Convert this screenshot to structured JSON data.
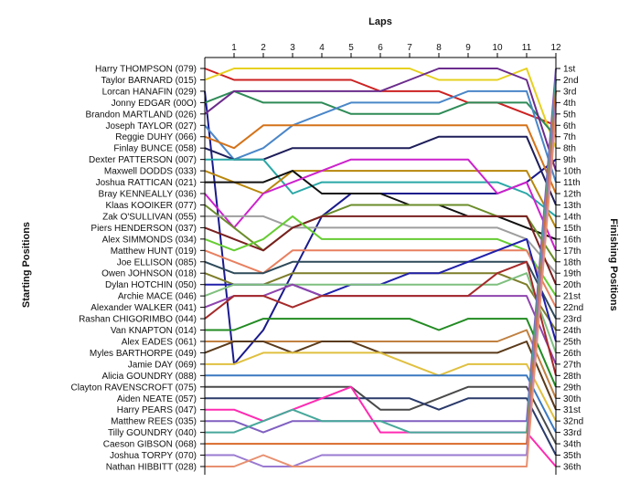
{
  "chart_data": {
    "type": "line",
    "title": "Laps",
    "left_axis_label": "Starting Positions",
    "right_axis_label": "Finishing Positions",
    "laps": [
      "1",
      "2",
      "3",
      "4",
      "5",
      "6",
      "7",
      "8",
      "9",
      "10",
      "11",
      "12"
    ],
    "start_labels": [
      "Harry THOMPSON (079)",
      "Taylor BARNARD (015)",
      "Lorcan HANAFIN (029)",
      "Jonny EDGAR (00O)",
      "Brandon MARTLAND (026)",
      "Joseph TAYLOR (027)",
      "Reggie DUHY (066)",
      "Finlay BUNCE (058)",
      "Dexter PATTERSON (007)",
      "Maxwell DODDS (033)",
      "Joshua RATTICAN (021)",
      "Bray KENNEALLY (036)",
      "Klaas KOOIKER (077)",
      "Zak O'SULLIVAN (055)",
      "Piers HENDERSON (037)",
      "Alex SIMMONDS (034)",
      "Matthew HUNT (019)",
      "Joe ELLISON (085)",
      "Owen JOHNSON (018)",
      "Dylan HOTCHIN (050)",
      "Archie MACE (046)",
      "Alexander WALKER (041)",
      "Rashan CHIGORIMBO (044)",
      "Van KNAPTON (014)",
      "Alex EADES (061)",
      "Myles BARTHORPE (049)",
      "Jamie DAY (069)",
      "Alicia GOUNDRY (088)",
      "Clayton RAVENSCROFT (075)",
      "Aiden NEATE (057)",
      "Harry PEARS (047)",
      "Matthew REES (035)",
      "Tilly GOUNDRY (040)",
      "Caeson GIBSON (068)",
      "Joshua TORPY (070)",
      "Nathan HIBBITT (028)"
    ],
    "finish_labels": [
      "1st",
      "2nd",
      "3rd",
      "4th",
      "5th",
      "6th",
      "7th",
      "8th",
      "9th",
      "10th",
      "11th",
      "12th",
      "13th",
      "14th",
      "15th",
      "16th",
      "17th",
      "18th",
      "19th",
      "20th",
      "21st",
      "22nd",
      "23rd",
      "24th",
      "25th",
      "26th",
      "27th",
      "28th",
      "29th",
      "30th",
      "31st",
      "32nd",
      "33rd",
      "34th",
      "35th",
      "36th"
    ],
    "y_range": [
      1,
      36
    ],
    "x_range": [
      0,
      12
    ],
    "grid": false,
    "series": [
      {
        "color": "#cc2222",
        "positions": [
          1,
          2,
          2,
          2,
          2,
          2,
          3,
          3,
          3,
          4,
          4,
          5,
          6
        ]
      },
      {
        "color": "#e6d020",
        "positions": [
          2,
          1,
          1,
          1,
          1,
          1,
          1,
          1,
          2,
          2,
          2,
          1,
          8
        ]
      },
      {
        "color": "#1a1a8c",
        "positions": [
          3,
          27,
          24,
          19,
          14,
          12,
          12,
          12,
          12,
          12,
          12,
          11,
          9
        ]
      },
      {
        "color": "#2e8b57",
        "positions": [
          4,
          3,
          4,
          4,
          4,
          5,
          5,
          5,
          5,
          4,
          4,
          4,
          7
        ]
      },
      {
        "color": "#6b2c8c",
        "positions": [
          5,
          3,
          3,
          3,
          3,
          3,
          3,
          2,
          1,
          1,
          1,
          2,
          10
        ]
      },
      {
        "color": "#4a86c8",
        "positions": [
          6,
          9,
          8,
          6,
          5,
          4,
          4,
          4,
          4,
          3,
          3,
          3,
          11
        ]
      },
      {
        "color": "#d4731a",
        "positions": [
          7,
          8,
          6,
          6,
          6,
          6,
          6,
          6,
          6,
          6,
          6,
          6,
          12
        ]
      },
      {
        "color": "#1e1e5a",
        "positions": [
          8,
          9,
          9,
          8,
          8,
          8,
          8,
          8,
          7,
          7,
          7,
          7,
          13
        ]
      },
      {
        "color": "#2aa7a7",
        "positions": [
          9,
          9,
          9,
          12,
          11,
          11,
          11,
          11,
          11,
          11,
          11,
          12,
          14
        ]
      },
      {
        "color": "#b8860b",
        "positions": [
          10,
          11,
          12,
          10,
          10,
          10,
          10,
          10,
          10,
          10,
          10,
          10,
          15
        ]
      },
      {
        "color": "#111111",
        "positions": [
          11,
          11,
          11,
          10,
          12,
          12,
          12,
          13,
          13,
          14,
          14,
          15,
          16
        ]
      },
      {
        "color": "#cc22cc",
        "positions": [
          12,
          15,
          12,
          11,
          10,
          9,
          9,
          9,
          9,
          9,
          12,
          11,
          17
        ]
      },
      {
        "color": "#6a8c2a",
        "positions": [
          13,
          15,
          17,
          15,
          14,
          13,
          13,
          13,
          13,
          13,
          14,
          14,
          18
        ]
      },
      {
        "color": "#9e9e9e",
        "positions": [
          14,
          14,
          14,
          15,
          15,
          15,
          15,
          15,
          15,
          15,
          15,
          16,
          19
        ]
      },
      {
        "color": "#7a2020",
        "positions": [
          15,
          16,
          17,
          15,
          14,
          14,
          14,
          14,
          14,
          14,
          14,
          14,
          20
        ]
      },
      {
        "color": "#66cc33",
        "positions": [
          16,
          17,
          16,
          14,
          16,
          16,
          16,
          16,
          16,
          16,
          16,
          17,
          21
        ]
      },
      {
        "color": "#e88060",
        "positions": [
          17,
          18,
          19,
          17,
          17,
          17,
          17,
          17,
          17,
          17,
          17,
          17,
          22
        ]
      },
      {
        "color": "#2e4a5a",
        "positions": [
          18,
          19,
          19,
          18,
          18,
          18,
          18,
          18,
          18,
          18,
          18,
          18,
          23
        ]
      },
      {
        "color": "#7d7d2a",
        "positions": [
          19,
          20,
          20,
          19,
          19,
          19,
          19,
          19,
          19,
          19,
          19,
          20,
          24
        ]
      },
      {
        "color": "#2020aa",
        "positions": [
          20,
          20,
          20,
          20,
          21,
          20,
          20,
          19,
          19,
          18,
          17,
          16,
          25
        ]
      },
      {
        "color": "#7fbf7f",
        "positions": [
          21,
          20,
          20,
          20,
          20,
          20,
          20,
          20,
          20,
          20,
          20,
          19,
          26
        ]
      },
      {
        "color": "#8e44ad",
        "positions": [
          22,
          21,
          21,
          20,
          21,
          21,
          21,
          21,
          21,
          21,
          21,
          21,
          27
        ]
      },
      {
        "color": "#a52a2a",
        "positions": [
          23,
          21,
          21,
          22,
          21,
          21,
          21,
          21,
          21,
          21,
          19,
          18,
          28
        ]
      },
      {
        "color": "#228b22",
        "positions": [
          24,
          24,
          23,
          23,
          23,
          23,
          23,
          23,
          24,
          23,
          23,
          23,
          29
        ]
      },
      {
        "color": "#c08040",
        "positions": [
          25,
          25,
          25,
          25,
          25,
          25,
          25,
          25,
          25,
          25,
          25,
          24,
          30
        ]
      },
      {
        "color": "#5a3a1a",
        "positions": [
          26,
          25,
          25,
          26,
          25,
          25,
          26,
          26,
          26,
          26,
          26,
          25,
          31
        ]
      },
      {
        "color": "#e0c040",
        "positions": [
          27,
          27,
          26,
          26,
          26,
          26,
          26,
          27,
          28,
          27,
          27,
          27,
          32
        ]
      },
      {
        "color": "#3a78c0",
        "positions": [
          28,
          28,
          28,
          28,
          28,
          28,
          28,
          28,
          28,
          28,
          28,
          28,
          33
        ]
      },
      {
        "color": "#4a4a4a",
        "positions": [
          29,
          29,
          29,
          29,
          29,
          29,
          31,
          31,
          30,
          29,
          29,
          29,
          34
        ]
      },
      {
        "color": "#2a3a6a",
        "positions": [
          30,
          30,
          30,
          30,
          30,
          30,
          30,
          30,
          31,
          30,
          30,
          30,
          35
        ]
      },
      {
        "color": "#ff2bb2",
        "positions": [
          31,
          31,
          32,
          31,
          30,
          29,
          33,
          33,
          33,
          33,
          33,
          33,
          36
        ]
      },
      {
        "color": "#8060c0",
        "positions": [
          32,
          32,
          33,
          32,
          32,
          32,
          32,
          32,
          32,
          32,
          32,
          32,
          1
        ]
      },
      {
        "color": "#46a89a",
        "positions": [
          33,
          33,
          32,
          31,
          32,
          32,
          32,
          33,
          33,
          33,
          33,
          33,
          2
        ]
      },
      {
        "color": "#d96a2a",
        "positions": [
          34,
          34,
          34,
          34,
          34,
          34,
          34,
          34,
          34,
          34,
          34,
          34,
          3
        ]
      },
      {
        "color": "#9a7ad0",
        "positions": [
          35,
          35,
          36,
          36,
          35,
          35,
          35,
          35,
          35,
          35,
          35,
          35,
          4
        ]
      },
      {
        "color": "#e89070",
        "positions": [
          36,
          36,
          35,
          36,
          36,
          36,
          36,
          36,
          36,
          36,
          36,
          36,
          5
        ]
      }
    ]
  }
}
